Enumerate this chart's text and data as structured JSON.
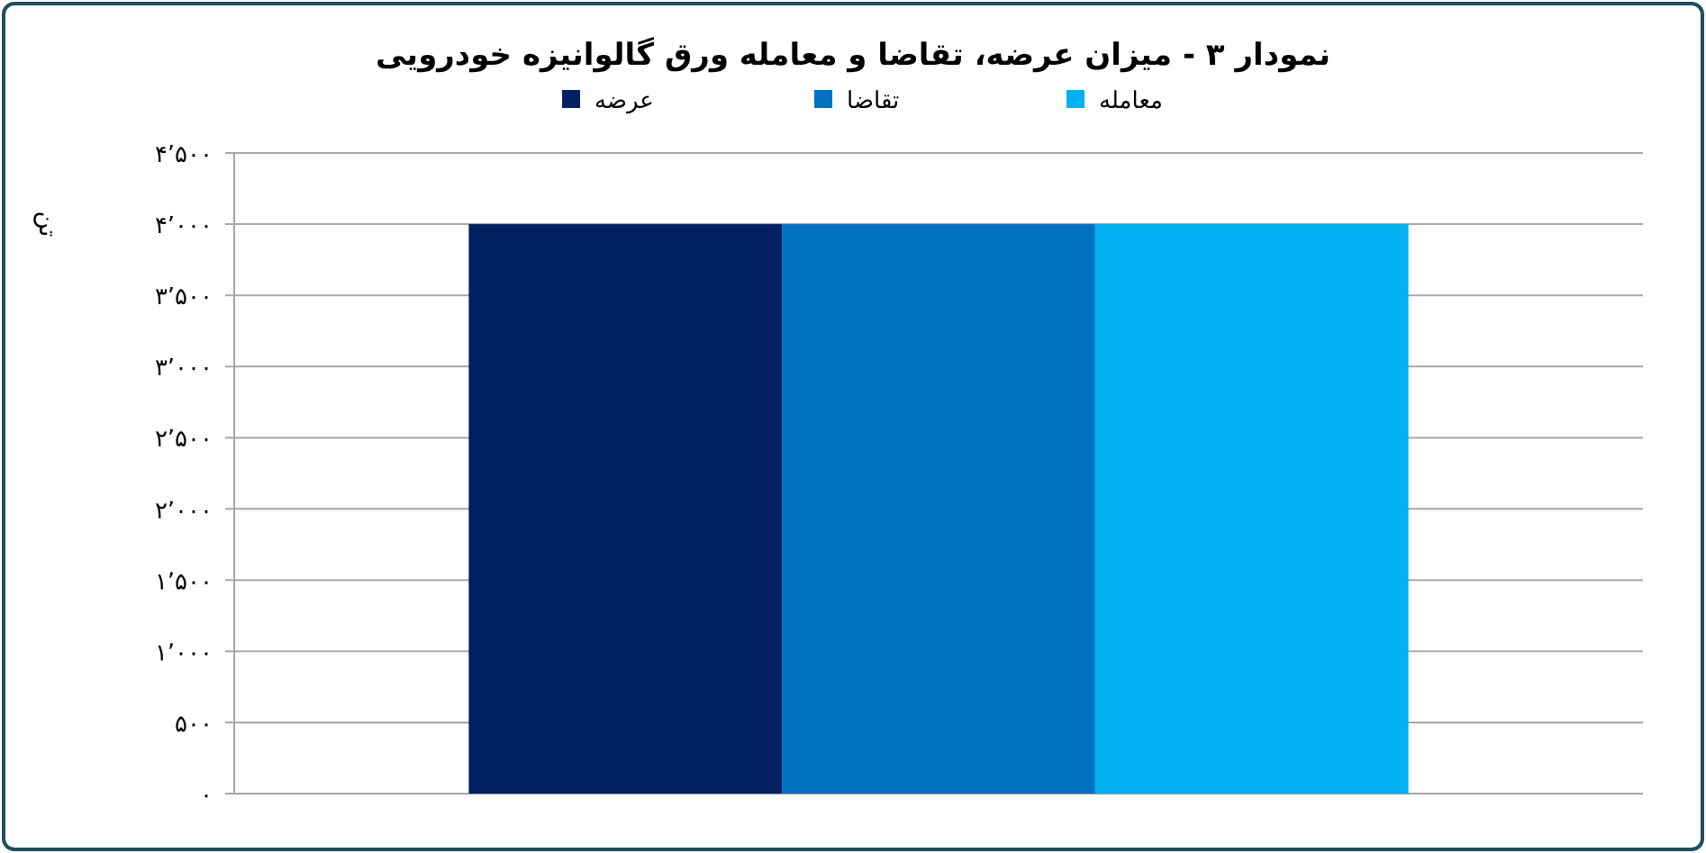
{
  "chart_data": {
    "type": "bar",
    "title": "نمودار ۳ - میزان عرضه، تقاضا و معامله ورق گالوانیزه خودرویی",
    "ylabel": "تن",
    "categories": [
      null
    ],
    "series": [
      {
        "name": "عرضه",
        "color": "#002060",
        "values": [
          4000
        ]
      },
      {
        "name": "تقاضا",
        "color": "#0070c0",
        "values": [
          4000
        ]
      },
      {
        "name": "معامله",
        "color": "#00b0f0",
        "values": [
          4000
        ]
      }
    ],
    "ylim": [
      0,
      4500
    ],
    "yticks": [
      {
        "value": 0,
        "label": "۰"
      },
      {
        "value": 500,
        "label": "۵۰۰"
      },
      {
        "value": 1000,
        "label": "۱٬۰۰۰"
      },
      {
        "value": 1500,
        "label": "۱٬۵۰۰"
      },
      {
        "value": 2000,
        "label": "۲٬۰۰۰"
      },
      {
        "value": 2500,
        "label": "۲٬۵۰۰"
      },
      {
        "value": 3000,
        "label": "۳٬۰۰۰"
      },
      {
        "value": 3500,
        "label": "۳٬۵۰۰"
      },
      {
        "value": 4000,
        "label": "۴٬۰۰۰"
      },
      {
        "value": 4500,
        "label": "۴٬۵۰۰"
      }
    ],
    "grid": "y",
    "legend": "top"
  }
}
